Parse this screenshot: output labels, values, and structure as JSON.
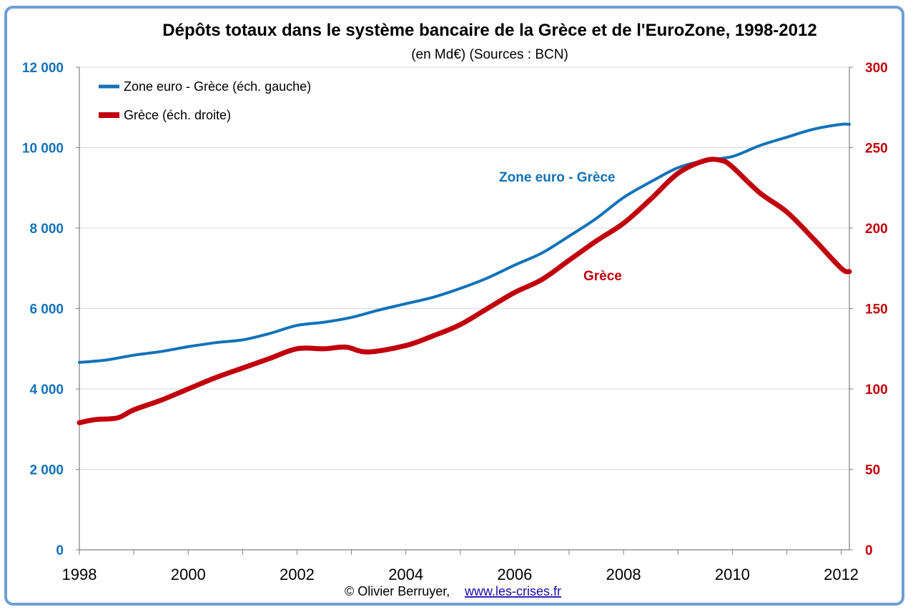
{
  "chart_data": {
    "type": "line",
    "title": "Dépôts totaux dans le système bancaire de la Grèce et de l'EuroZone, 1998-2012",
    "subtitle": "(en Md€) (Sources : BCN)",
    "xlabel": "",
    "ylabel": "",
    "xlim": [
      1998,
      2012.15
    ],
    "x_ticks": [
      "1998",
      "2000",
      "2002",
      "2004",
      "2006",
      "2008",
      "2010",
      "2012"
    ],
    "y_left": {
      "range": [
        0,
        12000
      ],
      "ticks": [
        "0",
        "2 000",
        "4 000",
        "6 000",
        "8 000",
        "10 000",
        "12 000"
      ]
    },
    "y_right": {
      "range": [
        0,
        300
      ],
      "ticks": [
        "0",
        "50",
        "100",
        "150",
        "200",
        "250",
        "300"
      ]
    },
    "grid": true,
    "legend_position": "top-left",
    "series": [
      {
        "name": "Zone euro - Grèce (éch. gauche)",
        "axis": "left",
        "color": "#1272b8",
        "points": [
          [
            1998.0,
            4660
          ],
          [
            1998.5,
            4720
          ],
          [
            1999.0,
            4840
          ],
          [
            1999.5,
            4930
          ],
          [
            2000.0,
            5050
          ],
          [
            2000.5,
            5150
          ],
          [
            2001.0,
            5220
          ],
          [
            2001.5,
            5380
          ],
          [
            2002.0,
            5580
          ],
          [
            2002.5,
            5660
          ],
          [
            2003.0,
            5780
          ],
          [
            2003.5,
            5960
          ],
          [
            2004.0,
            6120
          ],
          [
            2004.5,
            6280
          ],
          [
            2005.0,
            6500
          ],
          [
            2005.5,
            6760
          ],
          [
            2006.0,
            7080
          ],
          [
            2006.5,
            7380
          ],
          [
            2007.0,
            7800
          ],
          [
            2007.5,
            8240
          ],
          [
            2008.0,
            8760
          ],
          [
            2008.5,
            9150
          ],
          [
            2009.0,
            9500
          ],
          [
            2009.5,
            9680
          ],
          [
            2010.0,
            9780
          ],
          [
            2010.5,
            10050
          ],
          [
            2011.0,
            10260
          ],
          [
            2011.5,
            10460
          ],
          [
            2012.0,
            10580
          ],
          [
            2012.15,
            10580
          ]
        ]
      },
      {
        "name": "Grèce (éch. droite)",
        "axis": "right",
        "color": "#c0000c",
        "points": [
          [
            1998.0,
            79
          ],
          [
            1998.3,
            81
          ],
          [
            1998.7,
            82
          ],
          [
            1999.0,
            87
          ],
          [
            1999.5,
            93
          ],
          [
            2000.0,
            100
          ],
          [
            2000.5,
            107
          ],
          [
            2001.0,
            113
          ],
          [
            2001.5,
            119
          ],
          [
            2002.0,
            125
          ],
          [
            2002.5,
            125
          ],
          [
            2002.9,
            126
          ],
          [
            2003.3,
            123
          ],
          [
            2004.0,
            127
          ],
          [
            2004.5,
            133
          ],
          [
            2005.0,
            140
          ],
          [
            2005.5,
            150
          ],
          [
            2006.0,
            160
          ],
          [
            2006.5,
            168
          ],
          [
            2007.0,
            180
          ],
          [
            2007.5,
            192
          ],
          [
            2008.0,
            203
          ],
          [
            2008.5,
            218
          ],
          [
            2009.0,
            234
          ],
          [
            2009.5,
            242
          ],
          [
            2009.8,
            242
          ],
          [
            2010.0,
            238
          ],
          [
            2010.5,
            222
          ],
          [
            2011.0,
            210
          ],
          [
            2011.5,
            193
          ],
          [
            2012.0,
            175
          ],
          [
            2012.15,
            173
          ]
        ]
      }
    ],
    "annotations": [
      {
        "text": "Zone euro - Grèce",
        "series": 0
      },
      {
        "text": "Grèce",
        "series": 1
      }
    ],
    "credit": "© Olivier Berruyer,",
    "credit_link": "www.les-crises.fr"
  }
}
